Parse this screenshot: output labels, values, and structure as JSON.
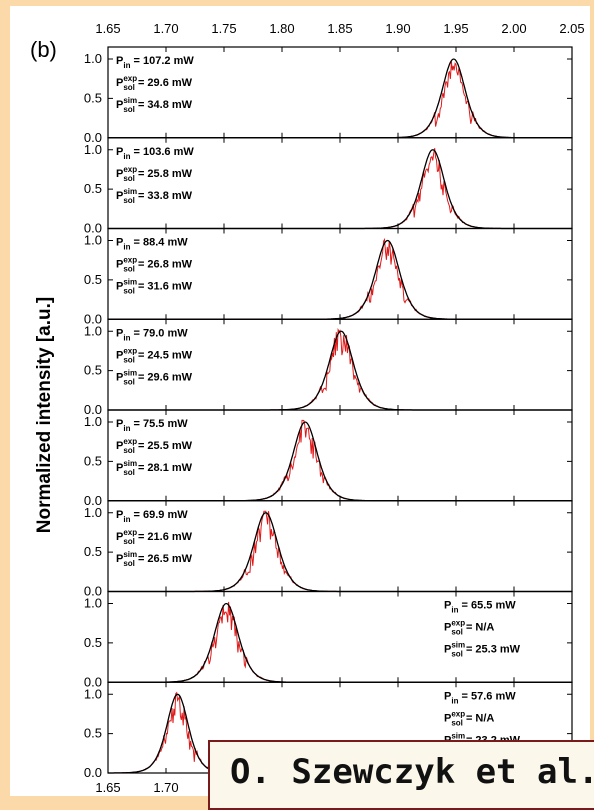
{
  "panel_label": "(b)",
  "watermark": "O. Szewczyk et al.",
  "chart_data": {
    "type": "line",
    "title": "",
    "xlabel": "",
    "ylabel": "Normalized intensity [a.u.]",
    "xlim": [
      1.65,
      2.05
    ],
    "ylim": [
      0.0,
      1.0
    ],
    "x_ticks_top": [
      "1.65",
      "1.70",
      "1.75",
      "1.80",
      "1.85",
      "1.90",
      "1.95",
      "2.00",
      "2.05"
    ],
    "x_ticks_bottom": [
      "1.65",
      "1.70"
    ],
    "y_ticks": [
      "0.0",
      "0.5",
      "1.0"
    ],
    "series_colors": {
      "experiment": "#e01818",
      "simulation": "#000000"
    },
    "panels": [
      {
        "center": 1.948,
        "sigma": 0.0135,
        "annot": {
          "pin": "107.2 mW",
          "exp": "29.6 mW",
          "sim": "34.8 mW"
        },
        "annot_pos": "left"
      },
      {
        "center": 1.93,
        "sigma": 0.0135,
        "annot": {
          "pin": "103.6 mW",
          "exp": "25.8 mW",
          "sim": "33.8 mW"
        },
        "annot_pos": "left"
      },
      {
        "center": 1.891,
        "sigma": 0.014,
        "annot": {
          "pin": "88.4 mW",
          "exp": "26.8 mW",
          "sim": "31.6 mW"
        },
        "annot_pos": "left"
      },
      {
        "center": 1.851,
        "sigma": 0.014,
        "annot": {
          "pin": "79.0 mW",
          "exp": "24.5 mW",
          "sim": "29.6 mW"
        },
        "annot_pos": "left"
      },
      {
        "center": 1.82,
        "sigma": 0.014,
        "annot": {
          "pin": "75.5 mW",
          "exp": "25.5 mW",
          "sim": "28.1 mW"
        },
        "annot_pos": "left"
      },
      {
        "center": 1.786,
        "sigma": 0.014,
        "annot": {
          "pin": "69.9 mW",
          "exp": "21.6 mW",
          "sim": "26.5 mW"
        },
        "annot_pos": "left"
      },
      {
        "center": 1.752,
        "sigma": 0.014,
        "annot": {
          "pin": "65.5 mW",
          "exp": "N/A",
          "sim": "25.3 mW"
        },
        "annot_pos": "right"
      },
      {
        "center": 1.71,
        "sigma": 0.0125,
        "annot": {
          "pin": "57.6 mW",
          "exp": "N/A",
          "sim": "23.2 mW"
        },
        "annot_pos": "right"
      }
    ]
  }
}
